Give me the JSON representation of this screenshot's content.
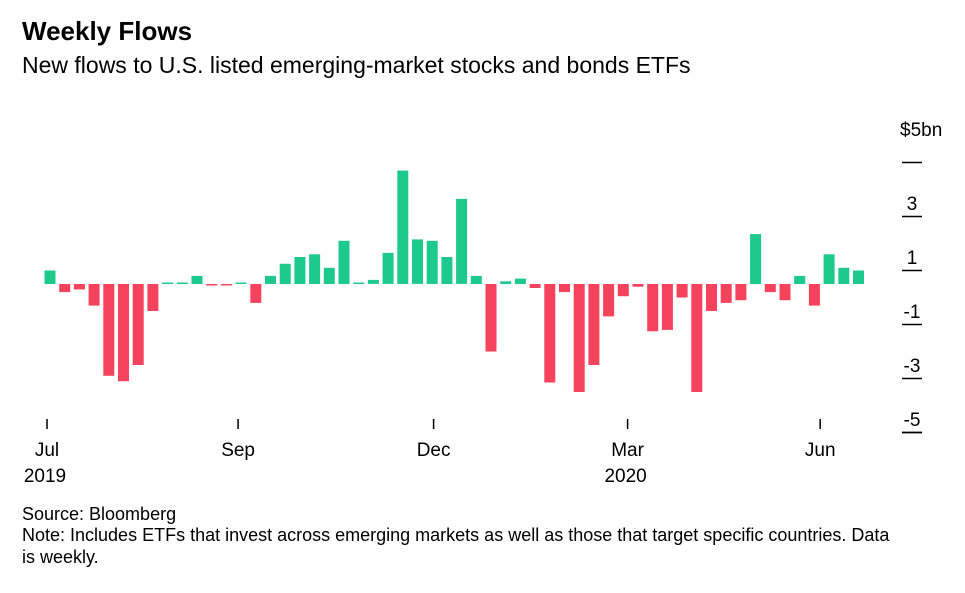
{
  "chart_data": {
    "type": "bar",
    "title": "Weekly Flows",
    "subtitle": "New flows to U.S. listed emerging-market stocks and bonds ETFs",
    "ylabel": "$5bn",
    "ylim": [
      -5.5,
      5
    ],
    "y_ticks": [
      "3",
      "1",
      "-1",
      "-3",
      "-5"
    ],
    "x_ticks": [
      {
        "label": "Jul",
        "year": "2019",
        "week": 0
      },
      {
        "label": "Sep",
        "year": "",
        "week": 13
      },
      {
        "label": "Dec",
        "year": "",
        "week": 26.3
      },
      {
        "label": "Mar",
        "year": "2020",
        "week": 39.5
      },
      {
        "label": "Jun",
        "year": "",
        "week": 52.6
      }
    ],
    "colors": {
      "positive": "#1ec98e",
      "negative": "#f5435d",
      "axis": "#000000"
    },
    "values": [
      0.5,
      -0.3,
      -0.2,
      -0.8,
      -3.4,
      -3.6,
      -3.0,
      -1.0,
      0.05,
      0.05,
      0.3,
      -0.05,
      -0.05,
      0.05,
      -0.7,
      0.3,
      0.75,
      1.0,
      1.1,
      0.6,
      1.6,
      0.05,
      0.15,
      1.15,
      4.2,
      1.65,
      1.6,
      1.0,
      3.15,
      0.3,
      -2.5,
      0.1,
      0.2,
      -0.15,
      -3.65,
      -0.3,
      -4.0,
      -3.0,
      -1.2,
      -0.45,
      -0.1,
      -1.75,
      -1.7,
      -0.5,
      -4.0,
      -1.0,
      -0.7,
      -0.6,
      1.85,
      -0.3,
      -0.6,
      0.3,
      -0.8,
      1.1,
      0.6,
      0.5
    ]
  },
  "footer": {
    "source": "Source: Bloomberg",
    "note": "Note: Includes ETFs that invest across emerging markets as well as those that target specific countries. Data is weekly."
  }
}
